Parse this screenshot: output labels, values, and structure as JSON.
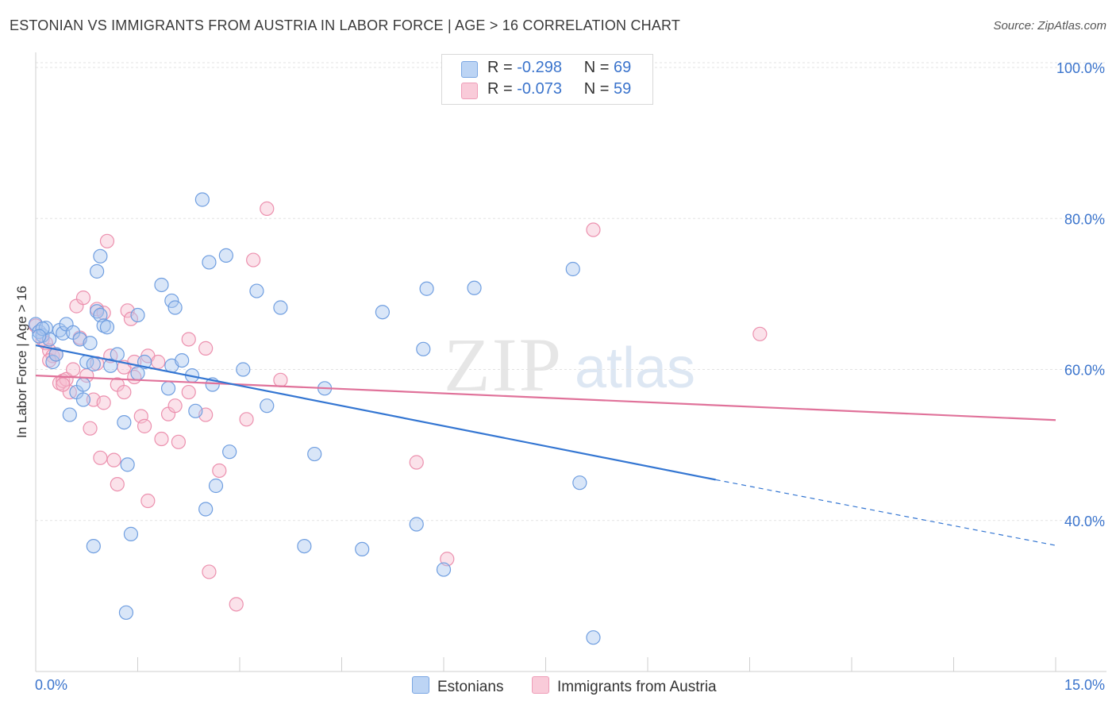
{
  "title": "ESTONIAN VS IMMIGRANTS FROM AUSTRIA IN LABOR FORCE | AGE > 16 CORRELATION CHART",
  "source": "Source: ZipAtlas.com",
  "watermark": {
    "zip": "ZIP",
    "atlas": "atlas"
  },
  "legend_top": {
    "rows": [
      {
        "r_label": "R =",
        "r_value": "-0.298",
        "n_label": "N =",
        "n_value": "69"
      },
      {
        "r_label": "R =",
        "r_value": "-0.073",
        "n_label": "N =",
        "n_value": "59"
      }
    ]
  },
  "legend_bottom": {
    "estonians": "Estonians",
    "austria": "Immigrants from Austria"
  },
  "colors": {
    "blue_fill": "#aac8f0",
    "blue_stroke": "#6f9ee0",
    "blue_line": "#3476d2",
    "pink_fill": "#f7bfd0",
    "pink_stroke": "#ec90ae",
    "pink_line": "#e0729a",
    "axis_text": "#3b74cc"
  },
  "chart_data": {
    "type": "scatter",
    "title": "ESTONIAN VS IMMIGRANTS FROM AUSTRIA IN LABOR FORCE | AGE > 16 CORRELATION CHART",
    "xlabel": "",
    "ylabel": "In Labor Force | Age > 16",
    "xlim": [
      0,
      15
    ],
    "ylim": [
      20,
      102
    ],
    "x_tick_labels": [
      "0.0%",
      "15.0%"
    ],
    "y_ticks": [
      40,
      60,
      80,
      100
    ],
    "y_tick_labels": [
      "40.0%",
      "60.0%",
      "80.0%",
      "100.0%"
    ],
    "grid": true,
    "legend": "bottom",
    "series": [
      {
        "name": "Estonians",
        "r": -0.298,
        "n": 69,
        "trend": {
          "x0": 0,
          "y0": 63.2,
          "x1": 10.0,
          "y1": 45.4,
          "dashed_to_x": 15,
          "dashed_to_y": 36.7
        },
        "points": [
          [
            0.0,
            66.0
          ],
          [
            0.05,
            65.0
          ],
          [
            0.1,
            64.5
          ],
          [
            0.15,
            65.5
          ],
          [
            0.2,
            64.0
          ],
          [
            0.25,
            61.0
          ],
          [
            0.3,
            62.0
          ],
          [
            0.35,
            65.2
          ],
          [
            0.4,
            64.8
          ],
          [
            0.45,
            66.0
          ],
          [
            0.5,
            54.0
          ],
          [
            0.55,
            64.9
          ],
          [
            0.6,
            57.0
          ],
          [
            0.65,
            64.0
          ],
          [
            0.7,
            56.0
          ],
          [
            0.7,
            58.0
          ],
          [
            0.75,
            61.0
          ],
          [
            0.8,
            63.5
          ],
          [
            0.85,
            60.7
          ],
          [
            0.85,
            36.6
          ],
          [
            0.9,
            73.0
          ],
          [
            0.95,
            75.0
          ],
          [
            0.9,
            67.7
          ],
          [
            0.95,
            67.2
          ],
          [
            1.0,
            65.8
          ],
          [
            1.05,
            65.6
          ],
          [
            1.1,
            60.5
          ],
          [
            1.2,
            62.0
          ],
          [
            1.3,
            53.0
          ],
          [
            1.35,
            47.4
          ],
          [
            1.4,
            38.2
          ],
          [
            1.33,
            27.8
          ],
          [
            1.5,
            59.5
          ],
          [
            1.5,
            67.2
          ],
          [
            1.6,
            61.0
          ],
          [
            1.85,
            71.2
          ],
          [
            1.95,
            57.5
          ],
          [
            2.0,
            69.1
          ],
          [
            2.0,
            60.5
          ],
          [
            2.05,
            68.2
          ],
          [
            2.15,
            61.2
          ],
          [
            2.3,
            59.2
          ],
          [
            2.35,
            54.5
          ],
          [
            2.45,
            82.5
          ],
          [
            2.5,
            41.5
          ],
          [
            2.55,
            74.2
          ],
          [
            2.6,
            58.0
          ],
          [
            2.65,
            44.6
          ],
          [
            2.8,
            75.1
          ],
          [
            2.85,
            49.1
          ],
          [
            3.05,
            60.0
          ],
          [
            3.25,
            70.4
          ],
          [
            3.4,
            55.2
          ],
          [
            3.6,
            68.2
          ],
          [
            3.95,
            36.6
          ],
          [
            4.1,
            48.8
          ],
          [
            4.25,
            57.5
          ],
          [
            4.8,
            36.2
          ],
          [
            5.1,
            67.6
          ],
          [
            5.6,
            39.5
          ],
          [
            5.7,
            62.7
          ],
          [
            5.75,
            70.7
          ],
          [
            6.0,
            33.5
          ],
          [
            6.45,
            70.8
          ],
          [
            7.9,
            73.3
          ],
          [
            8.0,
            45.0
          ],
          [
            8.2,
            24.5
          ],
          [
            0.1,
            65.4
          ],
          [
            0.05,
            64.4
          ]
        ]
      },
      {
        "name": "Immigrants from Austria",
        "r": -0.073,
        "n": 59,
        "trend": {
          "x0": 0,
          "y0": 59.2,
          "x1": 15,
          "y1": 53.3
        },
        "points": [
          [
            0.0,
            65.8
          ],
          [
            0.1,
            64.0
          ],
          [
            0.15,
            63.5
          ],
          [
            0.2,
            62.5
          ],
          [
            0.25,
            61.8
          ],
          [
            0.3,
            62.0
          ],
          [
            0.35,
            58.2
          ],
          [
            0.4,
            58.5
          ],
          [
            0.45,
            58.7
          ],
          [
            0.5,
            57.0
          ],
          [
            0.55,
            60.0
          ],
          [
            0.6,
            68.4
          ],
          [
            0.65,
            64.2
          ],
          [
            0.7,
            69.5
          ],
          [
            0.75,
            59.2
          ],
          [
            0.8,
            52.2
          ],
          [
            0.85,
            56.0
          ],
          [
            0.9,
            68.0
          ],
          [
            0.95,
            48.3
          ],
          [
            1.0,
            55.6
          ],
          [
            1.0,
            67.5
          ],
          [
            1.05,
            77.0
          ],
          [
            1.1,
            61.8
          ],
          [
            1.15,
            48.0
          ],
          [
            1.2,
            58.0
          ],
          [
            1.2,
            44.8
          ],
          [
            1.3,
            60.3
          ],
          [
            1.3,
            57.0
          ],
          [
            1.35,
            67.8
          ],
          [
            1.4,
            66.7
          ],
          [
            1.45,
            59.0
          ],
          [
            1.55,
            53.8
          ],
          [
            1.6,
            52.5
          ],
          [
            1.65,
            42.6
          ],
          [
            1.65,
            61.8
          ],
          [
            1.8,
            61.0
          ],
          [
            1.85,
            50.8
          ],
          [
            1.95,
            54.1
          ],
          [
            2.05,
            55.2
          ],
          [
            2.1,
            50.4
          ],
          [
            2.25,
            57.0
          ],
          [
            2.25,
            64.0
          ],
          [
            2.5,
            62.8
          ],
          [
            2.5,
            54.0
          ],
          [
            2.55,
            33.2
          ],
          [
            2.7,
            46.6
          ],
          [
            2.95,
            28.9
          ],
          [
            3.1,
            53.4
          ],
          [
            3.2,
            74.5
          ],
          [
            3.4,
            81.3
          ],
          [
            3.6,
            58.6
          ],
          [
            5.6,
            47.7
          ],
          [
            6.05,
            34.9
          ],
          [
            8.2,
            78.5
          ],
          [
            10.65,
            64.7
          ],
          [
            0.2,
            61.2
          ],
          [
            0.9,
            60.8
          ],
          [
            1.45,
            61.0
          ],
          [
            0.4,
            58.0
          ]
        ]
      }
    ]
  }
}
